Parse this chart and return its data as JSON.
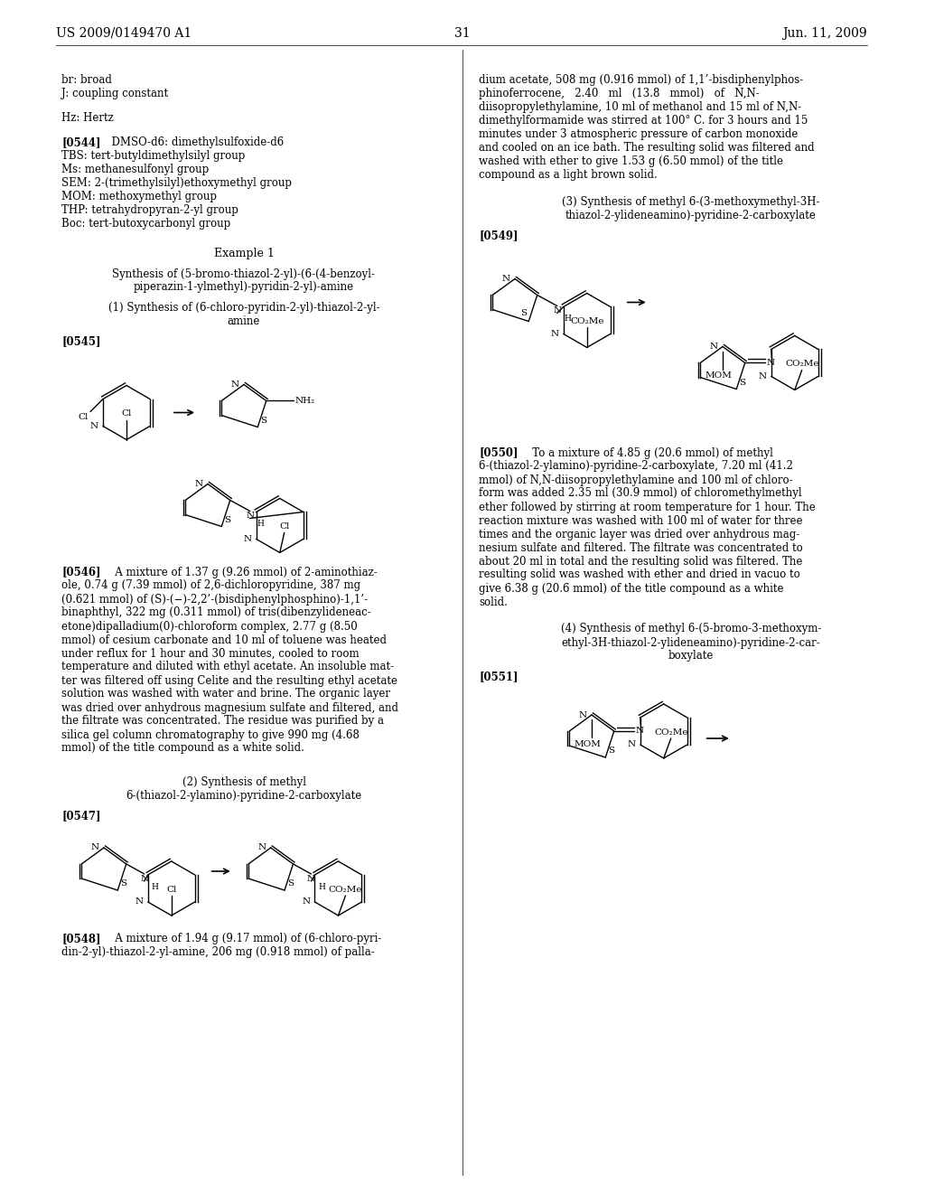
{
  "page_number": "31",
  "patent_number": "US 2009/0149470 A1",
  "date": "Jun. 11, 2009",
  "fig_width": 10.24,
  "fig_height": 13.2,
  "dpi": 100,
  "body_fs": 8.5,
  "bold_fs": 8.5,
  "header_fs": 10,
  "struct_lw": 1.0,
  "struct_fs": 7.5
}
